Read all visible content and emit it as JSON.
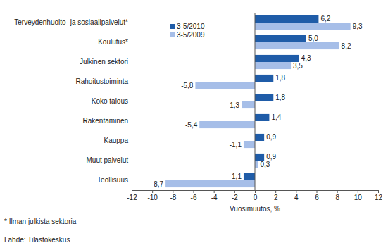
{
  "chart_data": {
    "type": "bar",
    "orientation": "horizontal",
    "categories": [
      "Terveydenhuolto- ja sosiaalipalvelut*",
      "Koulutus*",
      "Julkinen sektori",
      "Rahoitustoiminta",
      "Koko talous",
      "Rakentaminen",
      "Kauppa",
      "Muut palvelut",
      "Teollisuus"
    ],
    "series": [
      {
        "name": "3-5/2010",
        "color": "#1f5ca8",
        "values": [
          6.2,
          5.0,
          4.3,
          1.8,
          1.8,
          1.4,
          0.9,
          0.9,
          -1.1
        ],
        "value_labels": [
          "6,2",
          "5,0",
          "4,3",
          "1,8",
          "1,8",
          "1,4",
          "0,9",
          "0,9",
          "-1,1"
        ]
      },
      {
        "name": "3-5/2009",
        "color": "#a6bee8",
        "values": [
          9.3,
          8.2,
          3.5,
          -5.8,
          -1.3,
          -5.4,
          -1.1,
          0.3,
          -8.7
        ],
        "value_labels": [
          "9,3",
          "8,2",
          "3,5",
          "-5,8",
          "-1,3",
          "-5,4",
          "-1,1",
          "0,3",
          "-8,7"
        ]
      }
    ],
    "x_label": "Vuosimuutos, %",
    "xlim": [
      -12,
      12
    ],
    "xticks": [
      -12,
      -10,
      -8,
      -6,
      -4,
      -2,
      0,
      2,
      4,
      6,
      8,
      10,
      12
    ],
    "grid": false,
    "legend": "upper left",
    "data_labels": true,
    "annotations": [
      "* Ilman julkista sektoria",
      "Lähde: Tilastokeskus"
    ]
  }
}
